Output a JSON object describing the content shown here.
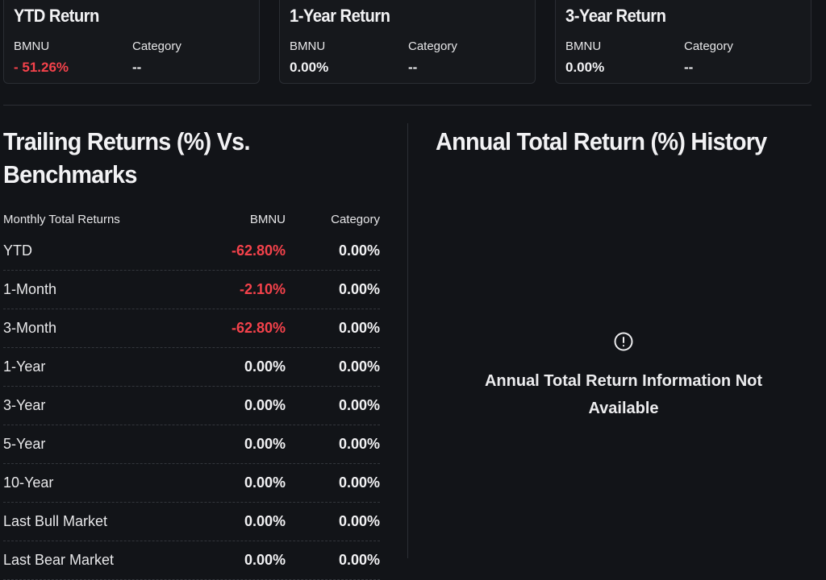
{
  "cards": [
    {
      "title": "YTD Return",
      "fund_label": "BMNU",
      "fund_value": "- 51.26%",
      "fund_negative": true,
      "category_label": "Category",
      "category_value": "--"
    },
    {
      "title": "1-Year Return",
      "fund_label": "BMNU",
      "fund_value": "0.00%",
      "fund_negative": false,
      "category_label": "Category",
      "category_value": "--"
    },
    {
      "title": "3-Year Return",
      "fund_label": "BMNU",
      "fund_value": "0.00%",
      "fund_negative": false,
      "category_label": "Category",
      "category_value": "--"
    }
  ],
  "trailing": {
    "title_line1": "Trailing Returns (%) Vs.",
    "title_line2": "Benchmarks",
    "headers": {
      "period": "Monthly Total Returns",
      "fund": "BMNU",
      "category": "Category"
    },
    "rows": [
      {
        "period": "YTD",
        "fund": "-62.80%",
        "category": "0.00%",
        "fund_negative": true
      },
      {
        "period": "1-Month",
        "fund": "-2.10%",
        "category": "0.00%",
        "fund_negative": true
      },
      {
        "period": "3-Month",
        "fund": "-62.80%",
        "category": "0.00%",
        "fund_negative": true
      },
      {
        "period": "1-Year",
        "fund": "0.00%",
        "category": "0.00%",
        "fund_negative": false
      },
      {
        "period": "3-Year",
        "fund": "0.00%",
        "category": "0.00%",
        "fund_negative": false
      },
      {
        "period": "5-Year",
        "fund": "0.00%",
        "category": "0.00%",
        "fund_negative": false
      },
      {
        "period": "10-Year",
        "fund": "0.00%",
        "category": "0.00%",
        "fund_negative": false
      },
      {
        "period": "Last Bull Market",
        "fund": "0.00%",
        "category": "0.00%",
        "fund_negative": false
      },
      {
        "period": "Last Bear Market",
        "fund": "0.00%",
        "category": "0.00%",
        "fund_negative": false
      }
    ]
  },
  "annual": {
    "title": "Annual Total Return (%) History",
    "icon": "alert-circle-icon",
    "message_line1": "Annual Total Return Information Not",
    "message_line2": "Available"
  },
  "colors": {
    "negative": "#f5424b",
    "background": "#121418"
  }
}
